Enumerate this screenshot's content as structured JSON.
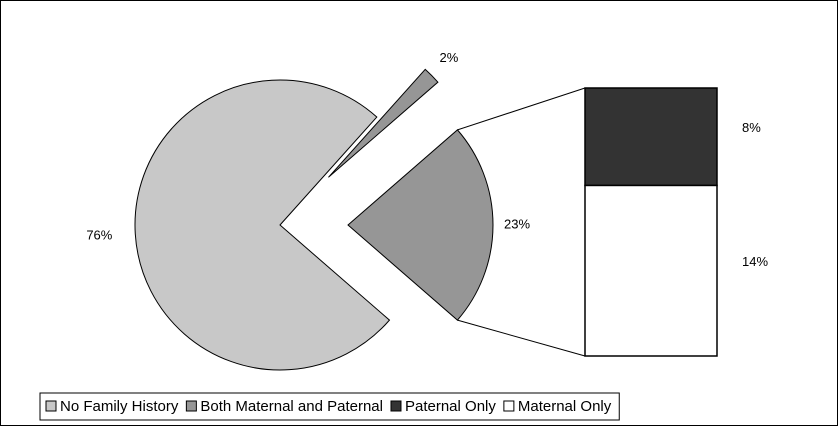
{
  "chart_data": {
    "type": "pie",
    "categories": [
      "No Family History",
      "Both Maternal and Paternal",
      null
    ],
    "values": [
      76,
      2,
      23
    ],
    "value_labels": [
      "76%",
      "2%",
      "23%"
    ],
    "colors": [
      "#c8c8c8",
      "#969696",
      "#969696"
    ],
    "breakout": {
      "categories": [
        "Paternal Only",
        "Maternal Only"
      ],
      "values": [
        8,
        14
      ],
      "value_labels": [
        "8%",
        "14%"
      ],
      "colors": [
        "#333333",
        "#ffffff"
      ]
    },
    "legend": true
  }
}
